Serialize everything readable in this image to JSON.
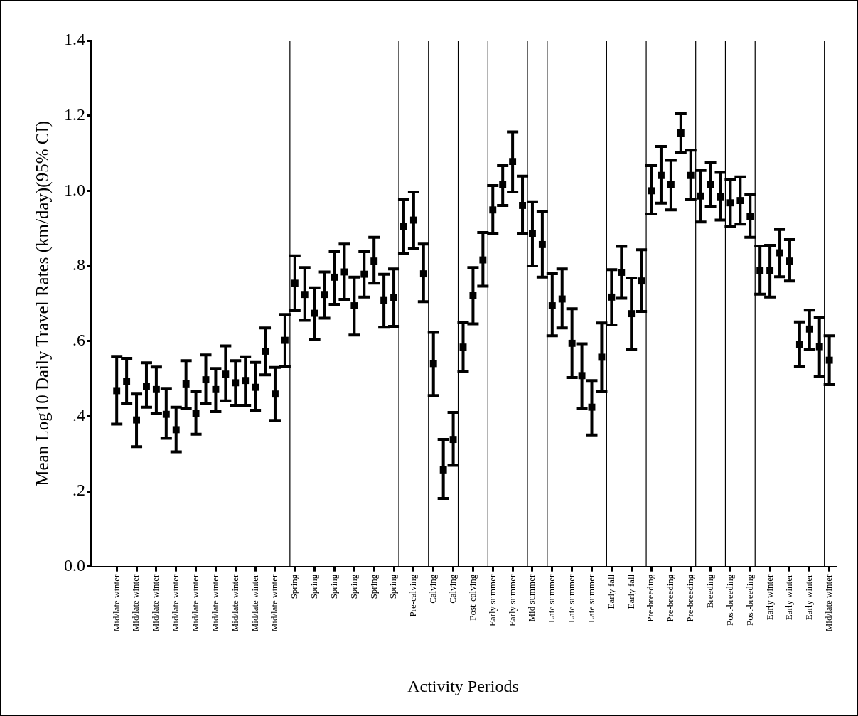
{
  "chart_data": {
    "type": "scatter",
    "xlabel": "Activity Periods",
    "ylabel": "Mean Log10 Daily Travel Rates (km/day)(95% CI)",
    "marker": "square",
    "color": "#000000",
    "grid": false,
    "legend": false,
    "categories": [
      "Mid/late winter",
      null,
      "Mid/late winter",
      null,
      "Mid/late winter",
      null,
      "Mid/late winter",
      null,
      "Mid/late winter",
      null,
      "Mid/late winter",
      null,
      "Mid/late winter",
      null,
      "Mid/late winter",
      null,
      "Mid/late winter",
      null,
      "Spring",
      null,
      "Spring",
      null,
      "Spring",
      null,
      "Spring",
      null,
      "Spring",
      null,
      "Spring",
      null,
      "Pre-calving",
      null,
      "Calving",
      null,
      "Calving",
      null,
      "Post-calving",
      null,
      "Early summer",
      null,
      "Early summer",
      null,
      "Mid summer",
      null,
      "Late summer",
      null,
      "Late summer",
      null,
      "Late summer",
      null,
      "Early fall",
      null,
      "Early fall",
      null,
      "Pre-breeding",
      null,
      "Pre-breeding",
      null,
      "Pre-breeding",
      null,
      "Breeding",
      null,
      "Post-breeding",
      null,
      "Post-breeding",
      null,
      "Early winter",
      null,
      "Early winter",
      null,
      "Early winter",
      null,
      "Mid/late winter"
    ],
    "values": [
      0.468,
      0.492,
      0.39,
      0.479,
      0.471,
      0.405,
      0.364,
      0.486,
      0.408,
      0.497,
      0.471,
      0.512,
      0.489,
      0.495,
      0.477,
      0.573,
      0.459,
      0.602,
      0.754,
      0.724,
      0.674,
      0.724,
      0.77,
      0.784,
      0.694,
      0.778,
      0.813,
      0.708,
      0.716,
      0.905,
      0.922,
      0.779,
      0.54,
      0.257,
      0.338,
      0.584,
      0.721,
      0.816,
      0.949,
      1.016,
      1.078,
      0.961,
      0.887,
      0.857,
      0.694,
      0.712,
      0.594,
      0.508,
      0.424,
      0.557,
      0.717,
      0.783,
      0.673,
      0.76,
      1.0,
      1.041,
      1.016,
      1.154,
      1.041,
      0.986,
      1.016,
      0.984,
      0.968,
      0.974,
      0.931,
      0.787,
      0.787,
      0.835,
      0.813,
      0.59,
      0.632,
      0.585,
      0.549
    ],
    "errors": [
      [
        0.379,
        0.559
      ],
      [
        0.433,
        0.554
      ],
      [
        0.319,
        0.459
      ],
      [
        0.424,
        0.542
      ],
      [
        0.408,
        0.531
      ],
      [
        0.341,
        0.474
      ],
      [
        0.305,
        0.424
      ],
      [
        0.421,
        0.548
      ],
      [
        0.352,
        0.465
      ],
      [
        0.433,
        0.563
      ],
      [
        0.412,
        0.527
      ],
      [
        0.441,
        0.587
      ],
      [
        0.429,
        0.548
      ],
      [
        0.429,
        0.558
      ],
      [
        0.416,
        0.543
      ],
      [
        0.51,
        0.635
      ],
      [
        0.389,
        0.53
      ],
      [
        0.532,
        0.671
      ],
      [
        0.681,
        0.827
      ],
      [
        0.655,
        0.796
      ],
      [
        0.604,
        0.742
      ],
      [
        0.661,
        0.784
      ],
      [
        0.698,
        0.838
      ],
      [
        0.711,
        0.858
      ],
      [
        0.616,
        0.77
      ],
      [
        0.717,
        0.838
      ],
      [
        0.754,
        0.876
      ],
      [
        0.637,
        0.778
      ],
      [
        0.639,
        0.792
      ],
      [
        0.834,
        0.977
      ],
      [
        0.846,
        0.997
      ],
      [
        0.705,
        0.858
      ],
      [
        0.455,
        0.623
      ],
      [
        0.181,
        0.338
      ],
      [
        0.269,
        0.41
      ],
      [
        0.519,
        0.65
      ],
      [
        0.646,
        0.796
      ],
      [
        0.746,
        0.889
      ],
      [
        0.887,
        1.014
      ],
      [
        0.961,
        1.067
      ],
      [
        0.997,
        1.157
      ],
      [
        0.887,
        1.039
      ],
      [
        0.8,
        0.971
      ],
      [
        0.77,
        0.944
      ],
      [
        0.614,
        0.779
      ],
      [
        0.635,
        0.792
      ],
      [
        0.503,
        0.686
      ],
      [
        0.42,
        0.593
      ],
      [
        0.35,
        0.495
      ],
      [
        0.465,
        0.648
      ],
      [
        0.643,
        0.79
      ],
      [
        0.714,
        0.852
      ],
      [
        0.577,
        0.768
      ],
      [
        0.679,
        0.843
      ],
      [
        0.938,
        1.067
      ],
      [
        0.967,
        1.118
      ],
      [
        0.949,
        1.081
      ],
      [
        1.101,
        1.205
      ],
      [
        0.976,
        1.108
      ],
      [
        0.917,
        1.054
      ],
      [
        0.957,
        1.075
      ],
      [
        0.922,
        1.049
      ],
      [
        0.905,
        1.03
      ],
      [
        0.911,
        1.037
      ],
      [
        0.876,
        0.99
      ],
      [
        0.725,
        0.853
      ],
      [
        0.717,
        0.855
      ],
      [
        0.771,
        0.897
      ],
      [
        0.76,
        0.87
      ],
      [
        0.533,
        0.651
      ],
      [
        0.578,
        0.682
      ],
      [
        0.505,
        0.662
      ],
      [
        0.484,
        0.614
      ]
    ],
    "ylim": [
      0,
      1.4
    ],
    "yticks": [
      {
        "value": 0,
        "label": "0.0"
      },
      {
        "value": 0.2,
        "label": ".2"
      },
      {
        "value": 0.4,
        "label": ".4"
      },
      {
        "value": 0.6,
        "label": ".6"
      },
      {
        "value": 0.8,
        "label": ".8"
      },
      {
        "value": 1,
        "label": "1.0"
      },
      {
        "value": 1.2,
        "label": "1.2"
      },
      {
        "value": 1.4,
        "label": "1.4"
      }
    ]
  }
}
